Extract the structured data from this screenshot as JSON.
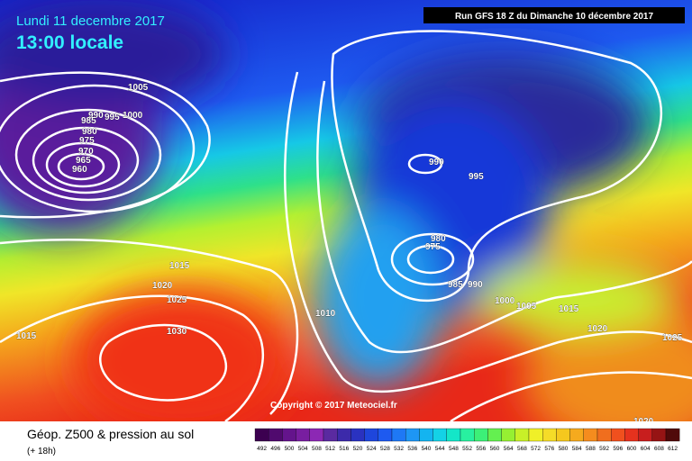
{
  "header": {
    "date": "Lundi 11 decembre 2017",
    "time": "13:00 locale",
    "run": "Run GFS 18 Z du Dimanche 10 décembre 2017"
  },
  "footer": {
    "title": "Géop. Z500 & pression au sol",
    "lead": "(+ 18h)",
    "copyright": "Copyright © 2017 Meteociel.fr"
  },
  "isobar_labels": [
    1005,
    990,
    995,
    1000,
    985,
    980,
    975,
    970,
    965,
    960,
    990,
    995,
    980,
    975,
    985,
    990,
    1000,
    1005,
    1015,
    1020,
    1025,
    1015,
    1020,
    1025,
    1030,
    1010,
    1015,
    1020
  ],
  "colorbar": [
    492,
    496,
    500,
    504,
    508,
    512,
    516,
    520,
    524,
    528,
    532,
    536,
    540,
    544,
    548,
    552,
    556,
    560,
    564,
    568,
    572,
    576,
    580,
    584,
    588,
    592,
    596,
    600,
    604,
    608,
    612
  ]
}
